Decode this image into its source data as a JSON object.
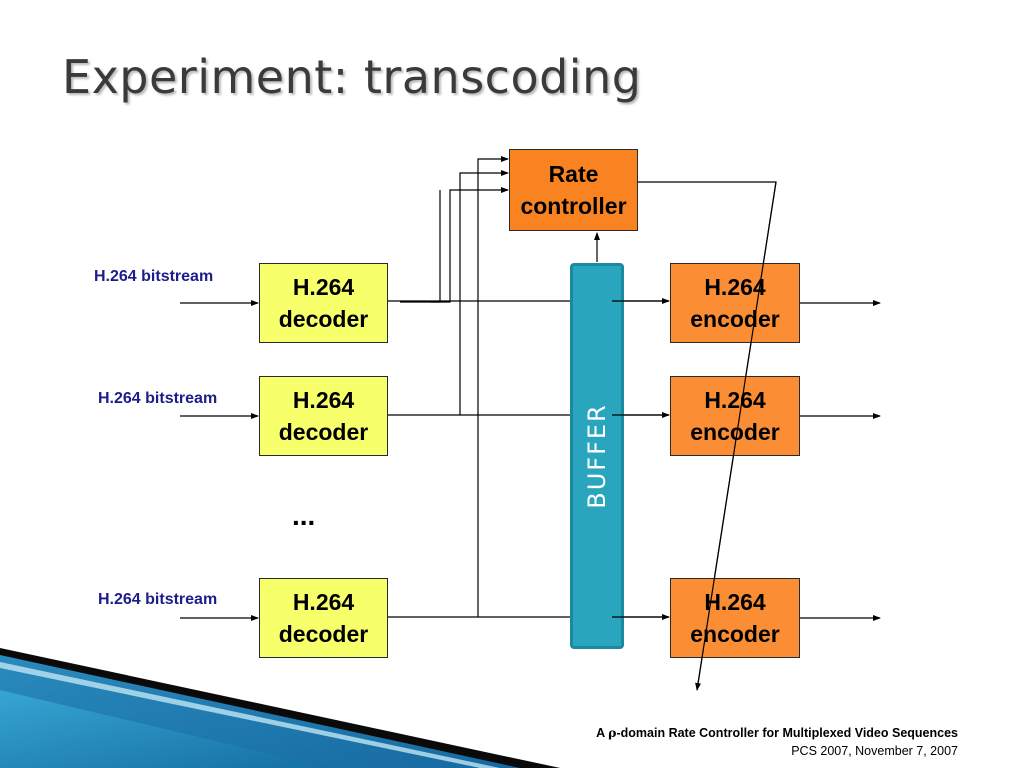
{
  "title": "Experiment: transcoding",
  "inputs": [
    "H.264 bitstream",
    "H.264 bitstream",
    "H.264 bitstream"
  ],
  "decoders": [
    {
      "line1": "H.264",
      "line2": "decoder"
    },
    {
      "line1": "H.264",
      "line2": "decoder"
    },
    {
      "line1": "H.264",
      "line2": "decoder"
    }
  ],
  "encoders": [
    {
      "line1": "H.264",
      "line2": "encoder"
    },
    {
      "line1": "H.264",
      "line2": "encoder"
    },
    {
      "line1": "H.264",
      "line2": "encoder"
    }
  ],
  "rate_controller": {
    "line1": "Rate",
    "line2": "controller"
  },
  "buffer_label": "BUFFER",
  "ellipsis": "...",
  "footer": {
    "line1_prefix": "A ",
    "rho": "ρ",
    "line1_suffix": "-domain Rate Controller for Multiplexed Video Sequences",
    "line2": "PCS 2007, November 7, 2007"
  },
  "colors": {
    "decoder": "#f7ff6a",
    "encoder": "#fb8e34",
    "rate_controller": "#f98320",
    "buffer": "#2aa5be",
    "input_label": "#1c1c8a",
    "accent_wedge": "#1f86b8"
  }
}
